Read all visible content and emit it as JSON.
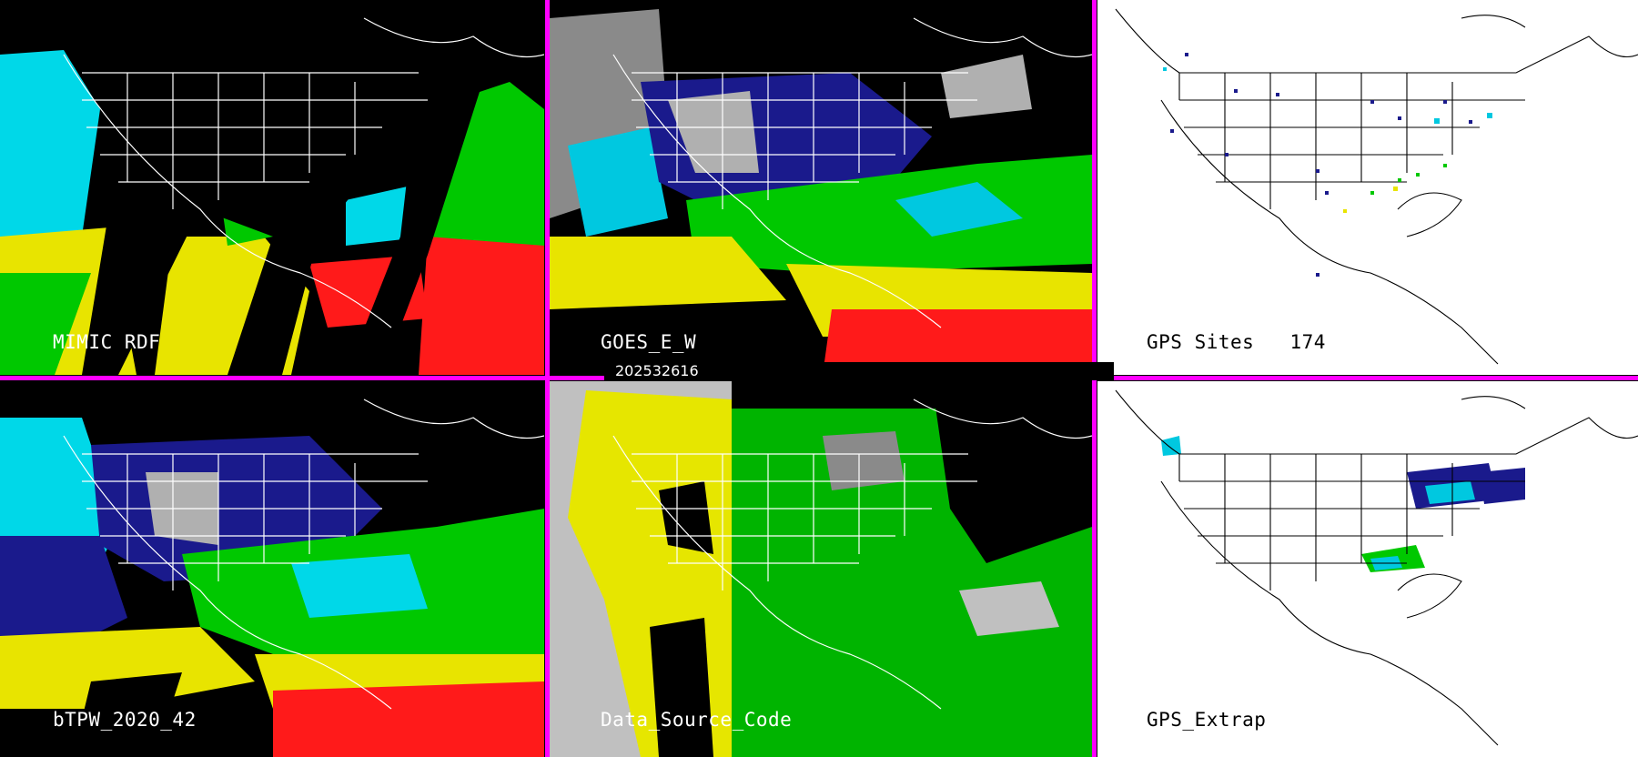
{
  "panels": {
    "p1": {
      "label": "MIMIC RDF"
    },
    "p2": {
      "label": "GOES_E_W"
    },
    "p3": {
      "label": "GPS Sites",
      "count": "174"
    },
    "p4": {
      "label": "bTPW_2020_42"
    },
    "p5": {
      "label": "Data_Source_Code"
    },
    "p6": {
      "label": "GPS_Extrap"
    }
  },
  "timestamp": "202532616",
  "colors": {
    "separator": "#ff00ff",
    "tpw_scale": [
      "#000000",
      "#1a1a8c",
      "#00e5ff",
      "#00c800",
      "#ffff00",
      "#ff0000"
    ],
    "source_code": [
      "#c0c0c0",
      "#e6e600",
      "#00b400",
      "#000000"
    ]
  }
}
